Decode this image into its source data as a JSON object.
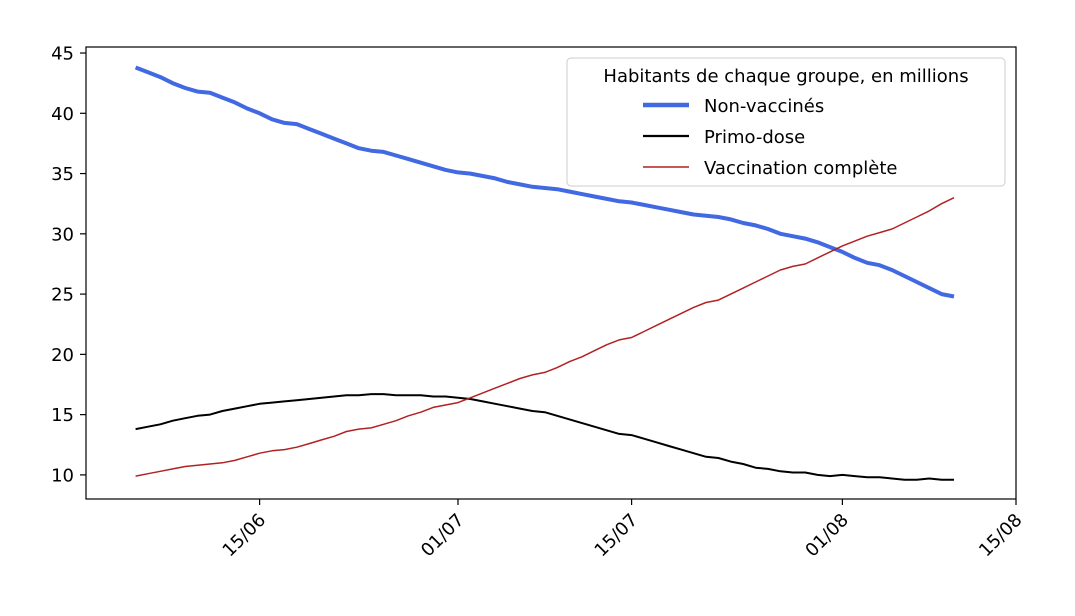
{
  "chart_data": {
    "type": "line",
    "title": "",
    "xlabel": "",
    "ylabel": "",
    "x_dates": [
      "05/06",
      "06/06",
      "07/06",
      "08/06",
      "09/06",
      "10/06",
      "11/06",
      "12/06",
      "13/06",
      "14/06",
      "15/06",
      "16/06",
      "17/06",
      "18/06",
      "19/06",
      "20/06",
      "21/06",
      "22/06",
      "23/06",
      "24/06",
      "25/06",
      "26/06",
      "27/06",
      "28/06",
      "29/06",
      "30/06",
      "01/07",
      "02/07",
      "03/07",
      "04/07",
      "05/07",
      "06/07",
      "07/07",
      "08/07",
      "09/07",
      "10/07",
      "11/07",
      "12/07",
      "13/07",
      "14/07",
      "15/07",
      "16/07",
      "17/07",
      "18/07",
      "19/07",
      "20/07",
      "21/07",
      "22/07",
      "23/07",
      "24/07",
      "25/07",
      "26/07",
      "27/07",
      "28/07",
      "29/07",
      "30/07",
      "31/07",
      "01/08",
      "02/08",
      "03/08",
      "04/08",
      "05/08",
      "06/08",
      "07/08",
      "08/08",
      "09/08",
      "10/08"
    ],
    "x_ticks": [
      "15/06",
      "01/07",
      "15/07",
      "01/08",
      "15/08"
    ],
    "x_range": [
      "01/06",
      "15/08"
    ],
    "ylim": [
      8,
      45.5
    ],
    "y_ticks": [
      10,
      15,
      20,
      25,
      30,
      35,
      40,
      45
    ],
    "legend": {
      "title": "Habitants de chaque groupe, en millions",
      "placement": "top-right"
    },
    "series": [
      {
        "name": "Non-vaccinés",
        "color": "#4169e1",
        "line_width": 4,
        "values": [
          43.8,
          43.4,
          43.0,
          42.5,
          42.1,
          41.8,
          41.7,
          41.3,
          40.9,
          40.4,
          40.0,
          39.5,
          39.2,
          39.1,
          38.7,
          38.3,
          37.9,
          37.5,
          37.1,
          36.9,
          36.8,
          36.5,
          36.2,
          35.9,
          35.6,
          35.3,
          35.1,
          35.0,
          34.8,
          34.6,
          34.3,
          34.1,
          33.9,
          33.8,
          33.7,
          33.5,
          33.3,
          33.1,
          32.9,
          32.7,
          32.6,
          32.4,
          32.2,
          32.0,
          31.8,
          31.6,
          31.5,
          31.4,
          31.2,
          30.9,
          30.7,
          30.4,
          30.0,
          29.8,
          29.6,
          29.3,
          28.9,
          28.5,
          28.0,
          27.6,
          27.4,
          27.0,
          26.5,
          26.0,
          25.5,
          25.0,
          24.8
        ]
      },
      {
        "name": "Primo-dose",
        "color": "#000000",
        "line_width": 2,
        "values": [
          13.8,
          14.0,
          14.2,
          14.5,
          14.7,
          14.9,
          15.0,
          15.3,
          15.5,
          15.7,
          15.9,
          16.0,
          16.1,
          16.2,
          16.3,
          16.4,
          16.5,
          16.6,
          16.6,
          16.7,
          16.7,
          16.6,
          16.6,
          16.6,
          16.5,
          16.5,
          16.4,
          16.3,
          16.1,
          15.9,
          15.7,
          15.5,
          15.3,
          15.2,
          14.9,
          14.6,
          14.3,
          14.0,
          13.7,
          13.4,
          13.3,
          13.0,
          12.7,
          12.4,
          12.1,
          11.8,
          11.5,
          11.4,
          11.1,
          10.9,
          10.6,
          10.5,
          10.3,
          10.2,
          10.2,
          10.0,
          9.9,
          10.0,
          9.9,
          9.8,
          9.8,
          9.7,
          9.6,
          9.6,
          9.7,
          9.6,
          9.6
        ]
      },
      {
        "name": "Vaccination complète",
        "color": "#b22222",
        "line_width": 1.5,
        "values": [
          9.9,
          10.1,
          10.3,
          10.5,
          10.7,
          10.8,
          10.9,
          11.0,
          11.2,
          11.5,
          11.8,
          12.0,
          12.1,
          12.3,
          12.6,
          12.9,
          13.2,
          13.6,
          13.8,
          13.9,
          14.2,
          14.5,
          14.9,
          15.2,
          15.6,
          15.8,
          16.0,
          16.4,
          16.8,
          17.2,
          17.6,
          18.0,
          18.3,
          18.5,
          18.9,
          19.4,
          19.8,
          20.3,
          20.8,
          21.2,
          21.4,
          21.9,
          22.4,
          22.9,
          23.4,
          23.9,
          24.3,
          24.5,
          25.0,
          25.5,
          26.0,
          26.5,
          27.0,
          27.3,
          27.5,
          28.0,
          28.5,
          29.0,
          29.4,
          29.8,
          30.1,
          30.4,
          30.9,
          31.4,
          31.9,
          32.5,
          33.0
        ]
      }
    ]
  }
}
